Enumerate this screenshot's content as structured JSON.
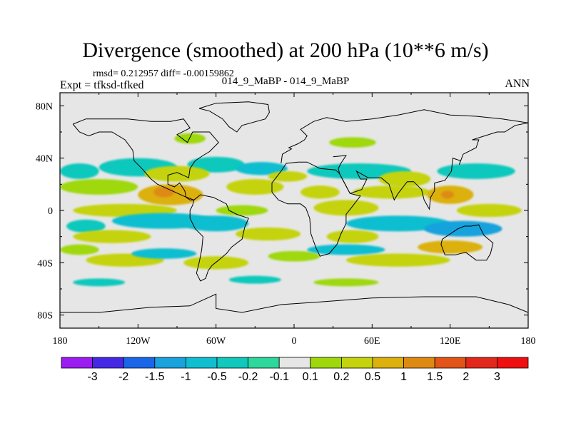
{
  "header": {
    "title": "Divergence (smoothed) at 200 hPa (10**6 m/s)",
    "rmsd_line": "rmsd= 0.212957 diff= -0.00159862",
    "expt_line": "Expt = tfksd-tfked",
    "experiment_names": "014_9_MaBP - 014_9_MaBP",
    "season": "ANN"
  },
  "chart_data": {
    "type": "contour-map",
    "title": "Divergence (smoothed) at 200 hPa (10**6 m/s)",
    "x_axis": {
      "range": [
        -180,
        180
      ],
      "ticks": [
        -180,
        -120,
        -60,
        0,
        60,
        120,
        180
      ],
      "tick_labels": [
        "180",
        "120W",
        "60W",
        "0",
        "60E",
        "120E",
        "180"
      ]
    },
    "y_axis": {
      "range": [
        -90,
        90
      ],
      "ticks": [
        80,
        40,
        0,
        -40,
        -80
      ],
      "tick_labels": [
        "80N",
        "40N",
        "0",
        "40S",
        "80S"
      ]
    },
    "colorbar": {
      "levels": [
        "-3",
        "-2",
        "-1.5",
        "-1",
        "-0.5",
        "-0.2",
        "-0.1",
        "0.1",
        "0.2",
        "0.5",
        "1",
        "1.5",
        "2",
        "3"
      ],
      "colors": [
        "#9a1cf0",
        "#4528e6",
        "#1b66e8",
        "#19a2dc",
        "#11bed0",
        "#10c8bc",
        "#2ed79b",
        "#e6e6e6",
        "#9ed80c",
        "#c4d30e",
        "#dcb10e",
        "#de8a12",
        "#e25418",
        "#e2281c",
        "#ee1010"
      ]
    },
    "field_blobs": [
      {
        "lon": -165,
        "lat": 30,
        "rlon": 15,
        "rlat": 6,
        "c": 5
      },
      {
        "lon": -120,
        "lat": 33,
        "rlon": 30,
        "rlat": 7,
        "c": 5
      },
      {
        "lon": -60,
        "lat": 35,
        "rlon": 22,
        "rlat": 6,
        "c": 5
      },
      {
        "lon": -25,
        "lat": 32,
        "rlon": 20,
        "rlat": 5,
        "c": 4
      },
      {
        "lon": 50,
        "lat": 30,
        "rlon": 40,
        "rlat": 6,
        "c": 5
      },
      {
        "lon": 140,
        "lat": 30,
        "rlon": 30,
        "rlat": 6,
        "c": 5
      },
      {
        "lon": -90,
        "lat": 28,
        "rlon": 25,
        "rlat": 6,
        "c": 9
      },
      {
        "lon": -5,
        "lat": 26,
        "rlon": 15,
        "rlat": 4,
        "c": 9
      },
      {
        "lon": 85,
        "lat": 24,
        "rlon": 20,
        "rlat": 6,
        "c": 9
      },
      {
        "lon": -150,
        "lat": 18,
        "rlon": 30,
        "rlat": 6,
        "c": 8
      },
      {
        "lon": -95,
        "lat": 12,
        "rlon": 25,
        "rlat": 8,
        "c": 10
      },
      {
        "lon": -100,
        "lat": 14,
        "rlon": 8,
        "rlat": 4,
        "c": 11
      },
      {
        "lon": -30,
        "lat": 18,
        "rlon": 22,
        "rlat": 6,
        "c": 9
      },
      {
        "lon": 20,
        "lat": 14,
        "rlon": 15,
        "rlat": 5,
        "c": 9
      },
      {
        "lon": 75,
        "lat": 14,
        "rlon": 30,
        "rlat": 5,
        "c": 9
      },
      {
        "lon": 120,
        "lat": 12,
        "rlon": 18,
        "rlat": 7,
        "c": 10
      },
      {
        "lon": 118,
        "lat": 12,
        "rlon": 5,
        "rlat": 3,
        "c": 11
      },
      {
        "lon": -130,
        "lat": 0,
        "rlon": 40,
        "rlat": 5,
        "c": 9
      },
      {
        "lon": -40,
        "lat": 0,
        "rlon": 20,
        "rlat": 4,
        "c": 8
      },
      {
        "lon": 40,
        "lat": 2,
        "rlon": 25,
        "rlat": 6,
        "c": 9
      },
      {
        "lon": 150,
        "lat": 0,
        "rlon": 25,
        "rlat": 5,
        "c": 9
      },
      {
        "lon": -100,
        "lat": -8,
        "rlon": 40,
        "rlat": 6,
        "c": 4
      },
      {
        "lon": -60,
        "lat": -10,
        "rlon": 25,
        "rlat": 6,
        "c": 4
      },
      {
        "lon": 80,
        "lat": -10,
        "rlon": 40,
        "rlat": 6,
        "c": 4
      },
      {
        "lon": 130,
        "lat": -14,
        "rlon": 30,
        "rlat": 6,
        "c": 3
      },
      {
        "lon": -160,
        "lat": -12,
        "rlon": 15,
        "rlat": 5,
        "c": 5
      },
      {
        "lon": -140,
        "lat": -20,
        "rlon": 30,
        "rlat": 5,
        "c": 9
      },
      {
        "lon": -20,
        "lat": -18,
        "rlon": 25,
        "rlat": 5,
        "c": 9
      },
      {
        "lon": 45,
        "lat": -20,
        "rlon": 20,
        "rlat": 5,
        "c": 9
      },
      {
        "lon": 120,
        "lat": -28,
        "rlon": 25,
        "rlat": 5,
        "c": 10
      },
      {
        "lon": -165,
        "lat": -30,
        "rlon": 15,
        "rlat": 4,
        "c": 8
      },
      {
        "lon": -130,
        "lat": -38,
        "rlon": 30,
        "rlat": 5,
        "c": 9
      },
      {
        "lon": -60,
        "lat": -40,
        "rlon": 25,
        "rlat": 5,
        "c": 9
      },
      {
        "lon": 0,
        "lat": -35,
        "rlon": 20,
        "rlat": 4,
        "c": 8
      },
      {
        "lon": 80,
        "lat": -38,
        "rlon": 40,
        "rlat": 5,
        "c": 9
      },
      {
        "lon": -100,
        "lat": -33,
        "rlon": 25,
        "rlat": 4,
        "c": 4
      },
      {
        "lon": 40,
        "lat": -30,
        "rlon": 30,
        "rlat": 4,
        "c": 4
      },
      {
        "lon": -150,
        "lat": -55,
        "rlon": 20,
        "rlat": 3,
        "c": 5
      },
      {
        "lon": -30,
        "lat": -53,
        "rlon": 20,
        "rlat": 3,
        "c": 5
      },
      {
        "lon": 40,
        "lat": -55,
        "rlon": 25,
        "rlat": 3,
        "c": 8
      },
      {
        "lon": -80,
        "lat": 55,
        "rlon": 12,
        "rlat": 4,
        "c": 8
      },
      {
        "lon": 45,
        "lat": 52,
        "rlon": 18,
        "rlat": 4,
        "c": 8
      }
    ],
    "coastlines": [
      [
        [
          -170,
          66
        ],
        [
          -160,
          70
        ],
        [
          -150,
          70
        ],
        [
          -140,
          70
        ],
        [
          -128,
          70
        ],
        [
          -110,
          68
        ],
        [
          -95,
          68
        ],
        [
          -85,
          70
        ],
        [
          -80,
          63
        ],
        [
          -90,
          58
        ],
        [
          -82,
          52
        ],
        [
          -78,
          60
        ],
        [
          -65,
          60
        ],
        [
          -58,
          52
        ],
        [
          -65,
          45
        ],
        [
          -70,
          42
        ],
        [
          -76,
          38
        ],
        [
          -80,
          32
        ],
        [
          -81,
          25
        ],
        [
          -90,
          29
        ],
        [
          -97,
          27
        ],
        [
          -97,
          20
        ],
        [
          -92,
          18
        ],
        [
          -88,
          21
        ],
        [
          -84,
          15
        ],
        [
          -83,
          10
        ],
        [
          -80,
          8
        ],
        [
          -77,
          8
        ],
        [
          -85,
          11
        ],
        [
          -96,
          16
        ],
        [
          -105,
          20
        ],
        [
          -110,
          24
        ],
        [
          -117,
          32
        ],
        [
          -123,
          38
        ],
        [
          -124,
          46
        ],
        [
          -130,
          54
        ],
        [
          -140,
          60
        ],
        [
          -150,
          60
        ],
        [
          -158,
          57
        ],
        [
          -165,
          60
        ],
        [
          -170,
          66
        ]
      ],
      [
        [
          -77,
          8
        ],
        [
          -72,
          12
        ],
        [
          -62,
          10
        ],
        [
          -52,
          5
        ],
        [
          -50,
          0
        ],
        [
          -44,
          -3
        ],
        [
          -35,
          -6
        ],
        [
          -38,
          -13
        ],
        [
          -40,
          -22
        ],
        [
          -48,
          -28
        ],
        [
          -52,
          -33
        ],
        [
          -58,
          -38
        ],
        [
          -63,
          -42
        ],
        [
          -66,
          -46
        ],
        [
          -68,
          -52
        ],
        [
          -72,
          -54
        ],
        [
          -75,
          -48
        ],
        [
          -73,
          -40
        ],
        [
          -71,
          -30
        ],
        [
          -70,
          -20
        ],
        [
          -76,
          -14
        ],
        [
          -80,
          -6
        ],
        [
          -80,
          0
        ],
        [
          -78,
          4
        ],
        [
          -77,
          8
        ]
      ],
      [
        [
          -17,
          14
        ],
        [
          -17,
          21
        ],
        [
          -10,
          30
        ],
        [
          -6,
          36
        ],
        [
          3,
          37
        ],
        [
          10,
          37
        ],
        [
          20,
          32
        ],
        [
          32,
          31
        ],
        [
          35,
          28
        ],
        [
          43,
          13
        ],
        [
          51,
          11
        ],
        [
          44,
          2
        ],
        [
          40,
          -3
        ],
        [
          40,
          -10
        ],
        [
          36,
          -18
        ],
        [
          33,
          -26
        ],
        [
          27,
          -33
        ],
        [
          20,
          -35
        ],
        [
          17,
          -29
        ],
        [
          13,
          -18
        ],
        [
          12,
          -6
        ],
        [
          9,
          2
        ],
        [
          5,
          5
        ],
        [
          -5,
          5
        ],
        [
          -12,
          8
        ],
        [
          -17,
          14
        ]
      ],
      [
        [
          -10,
          36
        ],
        [
          -9,
          43
        ],
        [
          -2,
          47
        ],
        [
          -4,
          48
        ],
        [
          3,
          51
        ],
        [
          8,
          54
        ],
        [
          10,
          57
        ],
        [
          5,
          62
        ],
        [
          15,
          68
        ],
        [
          25,
          71
        ],
        [
          40,
          68
        ],
        [
          60,
          70
        ],
        [
          80,
          73
        ],
        [
          100,
          77
        ],
        [
          120,
          73
        ],
        [
          140,
          72
        ],
        [
          160,
          70
        ],
        [
          180,
          67
        ]
      ],
      [
        [
          30,
          41
        ],
        [
          40,
          42
        ],
        [
          36,
          36
        ],
        [
          34,
          32
        ],
        [
          35,
          28
        ],
        [
          43,
          13
        ],
        [
          52,
          16
        ],
        [
          56,
          24
        ],
        [
          51,
          24
        ],
        [
          48,
          30
        ],
        [
          57,
          25
        ],
        [
          62,
          25
        ],
        [
          67,
          25
        ],
        [
          73,
          20
        ],
        [
          77,
          8
        ],
        [
          80,
          13
        ],
        [
          87,
          22
        ],
        [
          92,
          22
        ],
        [
          98,
          16
        ],
        [
          100,
          8
        ],
        [
          104,
          1
        ],
        [
          105,
          10
        ],
        [
          108,
          15
        ],
        [
          108,
          21
        ],
        [
          116,
          23
        ],
        [
          121,
          30
        ],
        [
          122,
          40
        ],
        [
          128,
          38
        ],
        [
          127,
          35
        ],
        [
          130,
          43
        ],
        [
          140,
          48
        ],
        [
          142,
          54
        ],
        [
          137,
          54
        ],
        [
          156,
          60
        ],
        [
          162,
          60
        ],
        [
          170,
          65
        ],
        [
          180,
          67
        ]
      ],
      [
        [
          114,
          -22
        ],
        [
          113,
          -26
        ],
        [
          116,
          -34
        ],
        [
          124,
          -34
        ],
        [
          132,
          -32
        ],
        [
          140,
          -38
        ],
        [
          148,
          -38
        ],
        [
          151,
          -33
        ],
        [
          153,
          -25
        ],
        [
          146,
          -19
        ],
        [
          142,
          -11
        ],
        [
          136,
          -12
        ],
        [
          131,
          -12
        ],
        [
          126,
          -14
        ],
        [
          114,
          -22
        ]
      ],
      [
        [
          -73,
          78
        ],
        [
          -60,
          82
        ],
        [
          -35,
          83
        ],
        [
          -20,
          81
        ],
        [
          -19,
          75
        ],
        [
          -22,
          70
        ],
        [
          -40,
          65
        ],
        [
          -44,
          60
        ],
        [
          -50,
          64
        ],
        [
          -55,
          70
        ],
        [
          -65,
          76
        ],
        [
          -73,
          78
        ]
      ],
      [
        [
          -180,
          -78
        ],
        [
          -150,
          -78
        ],
        [
          -110,
          -74
        ],
        [
          -80,
          -73
        ],
        [
          -60,
          -64
        ],
        [
          -60,
          -75
        ],
        [
          -40,
          -78
        ],
        [
          -10,
          -72
        ],
        [
          20,
          -70
        ],
        [
          60,
          -67
        ],
        [
          100,
          -66
        ],
        [
          140,
          -66
        ],
        [
          165,
          -72
        ],
        [
          180,
          -78
        ]
      ]
    ]
  }
}
